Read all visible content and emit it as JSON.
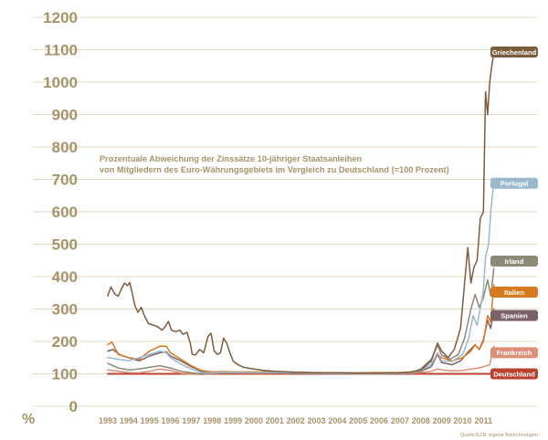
{
  "chart_data": {
    "type": "line",
    "title": "Prozentuale Abweichung der Zinssätze 10-jähriger Staatsanleihen",
    "subtitle": "von Mitgliedern des Euro-Währungsgebiets im Vergleich zu Deutschland (=100 Prozent)",
    "ylabel": "%",
    "xlabel": "",
    "source": "Quelle EZB, eigene Berechnungen",
    "ylim": [
      0,
      1200
    ],
    "xlim": [
      1993,
      2011.75
    ],
    "yticks": [
      0,
      100,
      200,
      300,
      400,
      500,
      600,
      700,
      800,
      900,
      1000,
      1100,
      1200
    ],
    "xtick_labels": [
      "1993",
      "1994",
      "1995",
      "1996",
      "1997",
      "1998",
      "1999",
      "2000",
      "2001",
      "2002",
      "2003",
      "2004",
      "2005",
      "2006",
      "2007",
      "2008",
      "2009",
      "2010",
      "2011"
    ],
    "grid": true,
    "legend": "end-of-line tags",
    "series": [
      {
        "name": "Deutschland",
        "color": "#b9422e",
        "points": [
          [
            1993,
            100
          ],
          [
            2011.5,
            100
          ]
        ]
      },
      {
        "name": "Frankreich",
        "color": "#dd8f7a",
        "points": [
          [
            1993,
            112
          ],
          [
            1993.5,
            108
          ],
          [
            1994,
            104
          ],
          [
            1994.5,
            103
          ],
          [
            1995,
            108
          ],
          [
            1995.5,
            115
          ],
          [
            1996,
            110
          ],
          [
            1996.5,
            102
          ],
          [
            1997,
            99
          ],
          [
            1997.5,
            98
          ],
          [
            1998,
            101
          ],
          [
            1998.5,
            102
          ],
          [
            1999,
            103
          ],
          [
            2000,
            102
          ],
          [
            2001,
            103
          ],
          [
            2002,
            102
          ],
          [
            2003,
            101
          ],
          [
            2004,
            101
          ],
          [
            2005,
            100
          ],
          [
            2006,
            100
          ],
          [
            2007,
            101
          ],
          [
            2007.5,
            102
          ],
          [
            2008,
            104
          ],
          [
            2008.5,
            108
          ],
          [
            2008.8,
            115
          ],
          [
            2009,
            112
          ],
          [
            2009.5,
            109
          ],
          [
            2010,
            110
          ],
          [
            2010.4,
            115
          ],
          [
            2010.8,
            118
          ],
          [
            2011,
            122
          ],
          [
            2011.3,
            128
          ],
          [
            2011.5,
            185
          ]
        ]
      },
      {
        "name": "Spanien",
        "color": "#7a6268",
        "points": [
          [
            1993,
            170
          ],
          [
            1993.25,
            175
          ],
          [
            1993.6,
            158
          ],
          [
            1994,
            150
          ],
          [
            1994.5,
            140
          ],
          [
            1995,
            155
          ],
          [
            1995.5,
            165
          ],
          [
            1995.8,
            168
          ],
          [
            1996,
            155
          ],
          [
            1996.5,
            140
          ],
          [
            1997,
            122
          ],
          [
            1997.5,
            108
          ],
          [
            1998,
            104
          ],
          [
            1998.5,
            105
          ],
          [
            1999,
            104
          ],
          [
            2000,
            104
          ],
          [
            2001,
            104
          ],
          [
            2002,
            103
          ],
          [
            2003,
            102
          ],
          [
            2004,
            101
          ],
          [
            2005,
            101
          ],
          [
            2006,
            101
          ],
          [
            2007,
            102
          ],
          [
            2007.5,
            103
          ],
          [
            2008,
            108
          ],
          [
            2008.5,
            122
          ],
          [
            2008.8,
            160
          ],
          [
            2009,
            135
          ],
          [
            2009.5,
            128
          ],
          [
            2009.9,
            140
          ],
          [
            2010.3,
            170
          ],
          [
            2010.6,
            190
          ],
          [
            2010.8,
            175
          ],
          [
            2011,
            205
          ],
          [
            2011.2,
            265
          ],
          [
            2011.35,
            240
          ],
          [
            2011.5,
            300
          ]
        ]
      },
      {
        "name": "Irland",
        "color": "#8c8a76",
        "points": [
          [
            1993,
            132
          ],
          [
            1993.5,
            118
          ],
          [
            1994,
            112
          ],
          [
            1994.5,
            115
          ],
          [
            1995,
            120
          ],
          [
            1995.5,
            125
          ],
          [
            1996,
            118
          ],
          [
            1996.5,
            108
          ],
          [
            1997,
            103
          ],
          [
            1997.5,
            100
          ],
          [
            1998,
            101
          ],
          [
            1998.5,
            102
          ],
          [
            1999,
            103
          ],
          [
            2000,
            103
          ],
          [
            2001,
            103
          ],
          [
            2002,
            102
          ],
          [
            2003,
            101
          ],
          [
            2004,
            101
          ],
          [
            2005,
            100
          ],
          [
            2006,
            100
          ],
          [
            2007,
            101
          ],
          [
            2007.5,
            103
          ],
          [
            2008,
            115
          ],
          [
            2008.5,
            145
          ],
          [
            2008.8,
            188
          ],
          [
            2009,
            158
          ],
          [
            2009.4,
            145
          ],
          [
            2009.8,
            160
          ],
          [
            2010.1,
            210
          ],
          [
            2010.4,
            300
          ],
          [
            2010.6,
            345
          ],
          [
            2010.8,
            305
          ],
          [
            2011,
            335
          ],
          [
            2011.2,
            390
          ],
          [
            2011.35,
            340
          ],
          [
            2011.5,
            425
          ]
        ]
      },
      {
        "name": "Italien",
        "color": "#d87a1e",
        "points": [
          [
            1993,
            190
          ],
          [
            1993.2,
            198
          ],
          [
            1993.5,
            160
          ],
          [
            1994,
            150
          ],
          [
            1994.5,
            145
          ],
          [
            1995,
            170
          ],
          [
            1995.5,
            185
          ],
          [
            1995.8,
            185
          ],
          [
            1996,
            165
          ],
          [
            1996.5,
            145
          ],
          [
            1997,
            125
          ],
          [
            1997.5,
            110
          ],
          [
            1998,
            106
          ],
          [
            1998.5,
            107
          ],
          [
            1999,
            106
          ],
          [
            2000,
            106
          ],
          [
            2001,
            106
          ],
          [
            2002,
            105
          ],
          [
            2003,
            104
          ],
          [
            2004,
            103
          ],
          [
            2005,
            103
          ],
          [
            2006,
            104
          ],
          [
            2007,
            104
          ],
          [
            2007.5,
            106
          ],
          [
            2008,
            110
          ],
          [
            2008.5,
            130
          ],
          [
            2008.8,
            160
          ],
          [
            2009,
            150
          ],
          [
            2009.5,
            140
          ],
          [
            2010,
            150
          ],
          [
            2010.4,
            170
          ],
          [
            2010.6,
            190
          ],
          [
            2010.8,
            175
          ],
          [
            2011,
            200
          ],
          [
            2011.2,
            280
          ],
          [
            2011.35,
            260
          ],
          [
            2011.5,
            375
          ]
        ]
      },
      {
        "name": "Portugal",
        "color": "#9bb9cd",
        "points": [
          [
            1993,
            150
          ],
          [
            1993.5,
            145
          ],
          [
            1994,
            140
          ],
          [
            1994.5,
            150
          ],
          [
            1995,
            160
          ],
          [
            1995.5,
            170
          ],
          [
            1995.8,
            165
          ],
          [
            1996,
            150
          ],
          [
            1996.5,
            130
          ],
          [
            1997,
            115
          ],
          [
            1997.5,
            104
          ],
          [
            1998,
            103
          ],
          [
            1998.5,
            105
          ],
          [
            1999,
            104
          ],
          [
            2000,
            104
          ],
          [
            2001,
            104
          ],
          [
            2002,
            103
          ],
          [
            2003,
            102
          ],
          [
            2004,
            101
          ],
          [
            2005,
            101
          ],
          [
            2006,
            101
          ],
          [
            2007,
            102
          ],
          [
            2007.5,
            103
          ],
          [
            2008,
            110
          ],
          [
            2008.5,
            130
          ],
          [
            2008.8,
            165
          ],
          [
            2009,
            140
          ],
          [
            2009.5,
            138
          ],
          [
            2010,
            160
          ],
          [
            2010.3,
            210
          ],
          [
            2010.5,
            280
          ],
          [
            2010.7,
            250
          ],
          [
            2010.9,
            320
          ],
          [
            2011,
            360
          ],
          [
            2011.1,
            460
          ],
          [
            2011.25,
            500
          ],
          [
            2011.35,
            600
          ],
          [
            2011.5,
            690
          ]
        ]
      },
      {
        "name": "Griechenland",
        "color": "#7c5c3e",
        "points": [
          [
            1993,
            340
          ],
          [
            1993.15,
            368
          ],
          [
            1993.35,
            345
          ],
          [
            1993.5,
            340
          ],
          [
            1993.65,
            362
          ],
          [
            1993.8,
            380
          ],
          [
            1993.95,
            372
          ],
          [
            1994.05,
            382
          ],
          [
            1994.15,
            355
          ],
          [
            1994.3,
            310
          ],
          [
            1994.45,
            290
          ],
          [
            1994.6,
            305
          ],
          [
            1994.75,
            280
          ],
          [
            1994.95,
            255
          ],
          [
            1995.2,
            250
          ],
          [
            1995.4,
            245
          ],
          [
            1995.6,
            235
          ],
          [
            1995.75,
            245
          ],
          [
            1995.9,
            262
          ],
          [
            1996.05,
            235
          ],
          [
            1996.25,
            230
          ],
          [
            1996.45,
            235
          ],
          [
            1996.6,
            222
          ],
          [
            1996.8,
            228
          ],
          [
            1996.95,
            195
          ],
          [
            1997.05,
            160
          ],
          [
            1997.2,
            158
          ],
          [
            1997.4,
            175
          ],
          [
            1997.6,
            165
          ],
          [
            1997.8,
            215
          ],
          [
            1997.95,
            225
          ],
          [
            1998.1,
            170
          ],
          [
            1998.25,
            160
          ],
          [
            1998.4,
            165
          ],
          [
            1998.55,
            210
          ],
          [
            1998.7,
            195
          ],
          [
            1998.85,
            165
          ],
          [
            1999,
            140
          ],
          [
            1999.2,
            130
          ],
          [
            1999.5,
            120
          ],
          [
            2000,
            115
          ],
          [
            2000.5,
            110
          ],
          [
            2001,
            108
          ],
          [
            2002,
            105
          ],
          [
            2003,
            103
          ],
          [
            2004,
            103
          ],
          [
            2005,
            102
          ],
          [
            2006,
            102
          ],
          [
            2007,
            103
          ],
          [
            2007.5,
            105
          ],
          [
            2008,
            112
          ],
          [
            2008.5,
            140
          ],
          [
            2008.8,
            195
          ],
          [
            2009,
            170
          ],
          [
            2009.3,
            150
          ],
          [
            2009.6,
            175
          ],
          [
            2009.9,
            240
          ],
          [
            2010.1,
            380
          ],
          [
            2010.25,
            490
          ],
          [
            2010.4,
            380
          ],
          [
            2010.55,
            430
          ],
          [
            2010.7,
            450
          ],
          [
            2010.85,
            580
          ],
          [
            2011,
            600
          ],
          [
            2011.1,
            970
          ],
          [
            2011.2,
            900
          ],
          [
            2011.3,
            1000
          ],
          [
            2011.4,
            1050
          ],
          [
            2011.5,
            1090
          ]
        ]
      }
    ]
  }
}
